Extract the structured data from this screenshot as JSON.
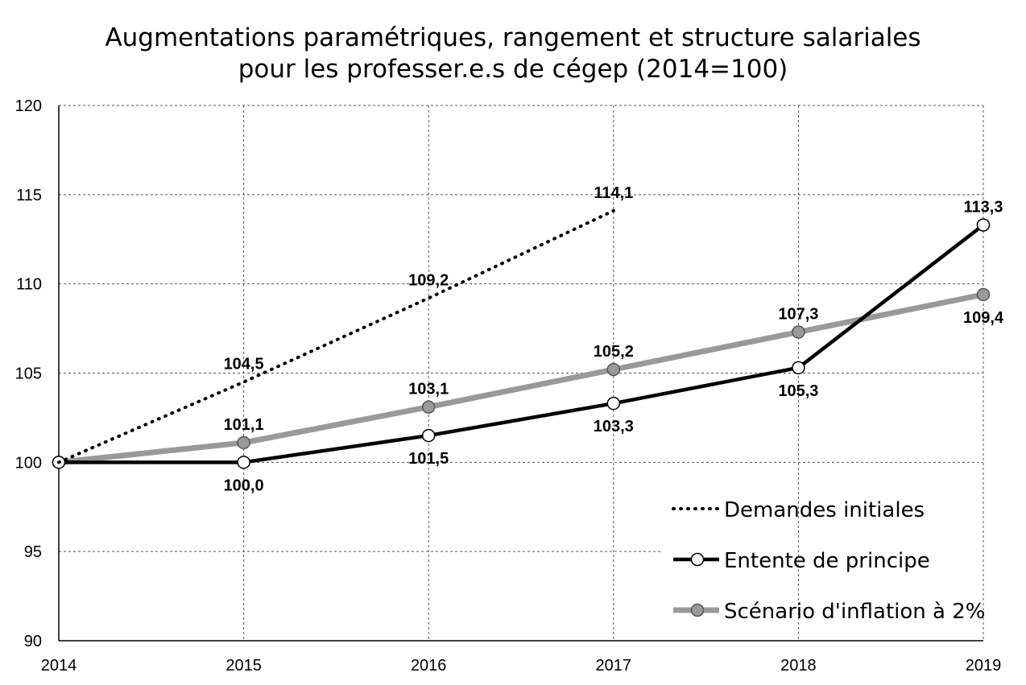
{
  "chart_data": {
    "type": "line",
    "title_lines": [
      "Augmentations paramétriques, rangement et structure salariales",
      "pour les professer.e.s de cégep (2014=100)"
    ],
    "categories": [
      "2014",
      "2015",
      "2016",
      "2017",
      "2018",
      "2019"
    ],
    "ylim": [
      90,
      120
    ],
    "yticks": [
      90,
      95,
      100,
      105,
      110,
      115,
      120
    ],
    "ytick_labels": [
      "90",
      "95",
      "100",
      "105",
      "110",
      "115",
      "120"
    ],
    "grid": true,
    "legend_position": "bottom-right",
    "series": [
      {
        "name": "Demandes initiales",
        "style": "dotted",
        "color": "#000000",
        "marker": "none",
        "values": [
          100,
          104.5,
          109.2,
          114.1,
          null,
          null
        ],
        "labels": [
          "",
          "104,5",
          "109,2",
          "114,1",
          "",
          ""
        ],
        "label_positions": [
          "",
          "above",
          "above",
          "above",
          "",
          ""
        ]
      },
      {
        "name": "Entente de principe",
        "style": "solid",
        "color": "#000000",
        "marker": "circle-white",
        "values": [
          100,
          100.0,
          101.5,
          103.3,
          105.3,
          113.3
        ],
        "labels": [
          "",
          "100,0",
          "101,5",
          "103,3",
          "105,3",
          "113,3"
        ],
        "label_positions": [
          "",
          "below",
          "below",
          "below",
          "below",
          "above"
        ]
      },
      {
        "name": "Scénario d'inflation à 2%",
        "style": "solid-thick",
        "color": "#999999",
        "marker": "circle-gray",
        "values": [
          100,
          101.1,
          103.1,
          105.2,
          107.3,
          109.4
        ],
        "labels": [
          "",
          "101,1",
          "103,1",
          "105,2",
          "107,3",
          "109,4"
        ],
        "label_positions": [
          "",
          "above",
          "above",
          "above",
          "above",
          "below"
        ]
      }
    ]
  }
}
